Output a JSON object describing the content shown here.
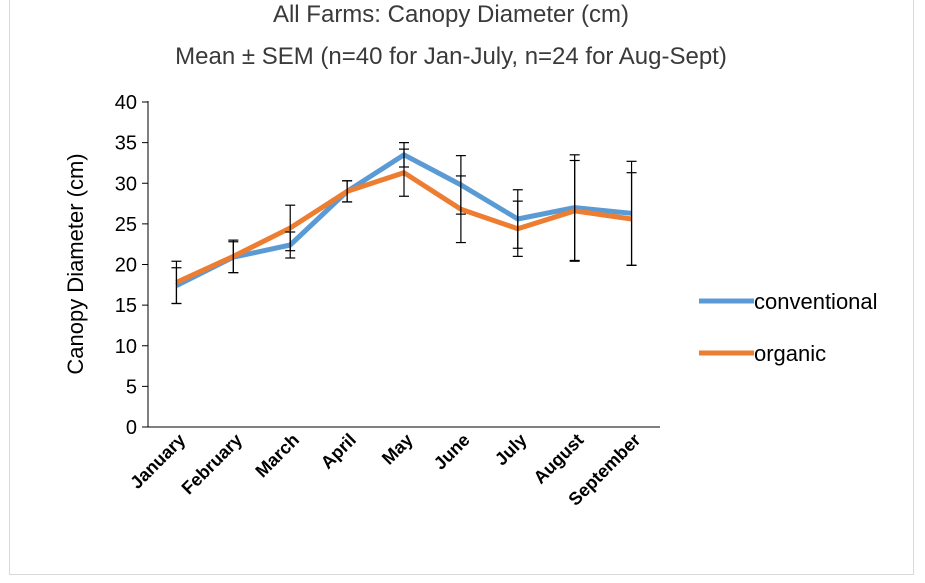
{
  "chart_data": {
    "type": "line",
    "title": "All Farms: Canopy Diameter (cm)",
    "subtitle": "Mean ± SEM (n=40 for Jan-July, n=24 for Aug-Sept)",
    "xlabel": "",
    "ylabel": "Canopy Diameter (cm)",
    "ylim": [
      0,
      40
    ],
    "yticks": [
      0,
      5,
      10,
      15,
      20,
      25,
      30,
      35,
      40
    ],
    "categories": [
      "January",
      "February",
      "March",
      "April",
      "May",
      "June",
      "July",
      "August",
      "September"
    ],
    "series": [
      {
        "name": "conventional",
        "color": "#5b9bd5",
        "values": [
          17.4,
          20.9,
          22.4,
          29.0,
          33.5,
          29.8,
          25.6,
          27.0,
          26.3
        ],
        "err": [
          2.2,
          1.9,
          1.6,
          1.3,
          1.5,
          3.6,
          3.6,
          6.5,
          6.4
        ]
      },
      {
        "name": "organic",
        "color": "#ed7d31",
        "values": [
          17.8,
          21.0,
          24.5,
          29.0,
          31.3,
          26.8,
          24.4,
          26.6,
          25.6
        ],
        "err": [
          2.6,
          2.0,
          2.8,
          1.3,
          2.9,
          4.1,
          3.4,
          6.2,
          5.7
        ]
      }
    ],
    "grid": false,
    "legend_position": "right"
  }
}
